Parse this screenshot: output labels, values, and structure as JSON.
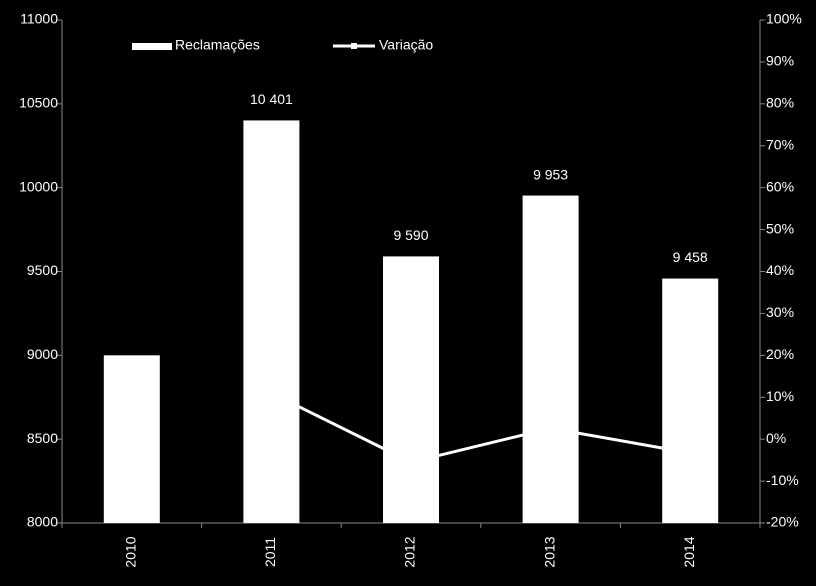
{
  "chart_data": {
    "type": "bar-line",
    "categories": [
      "2010",
      "2011",
      "2012",
      "2013",
      "2014"
    ],
    "series": [
      {
        "name": "Reclamações",
        "type": "bar",
        "color": "#ffffff",
        "values": [
          9000,
          10401,
          9590,
          9953,
          9458
        ],
        "value_labels": [
          null,
          "10 401",
          "9 590",
          "9 953",
          "9 458"
        ]
      },
      {
        "name": "Variação",
        "type": "line",
        "axis": "y2",
        "color": "#ffffff",
        "values": [
          null,
          11,
          -5.5,
          2.6,
          -3.3
        ]
      }
    ],
    "ylim": [
      8000,
      11000
    ],
    "yticks": [
      8000,
      8500,
      9000,
      9500,
      10000,
      10500,
      11000
    ],
    "y2lim": [
      -20,
      100
    ],
    "y2ticks": [
      {
        "value": -20,
        "label": "-20%"
      },
      {
        "value": -10,
        "label": "-10%"
      },
      {
        "value": 0,
        "label": "0%"
      },
      {
        "value": 10,
        "label": "10%"
      },
      {
        "value": 20,
        "label": "20%"
      },
      {
        "value": 30,
        "label": "30%"
      },
      {
        "value": 40,
        "label": "40%"
      },
      {
        "value": 50,
        "label": "50%"
      },
      {
        "value": 60,
        "label": "60%"
      },
      {
        "value": 70,
        "label": "70%"
      },
      {
        "value": 80,
        "label": "80%"
      },
      {
        "value": 90,
        "label": "90%"
      },
      {
        "value": 100,
        "label": "100%"
      }
    ],
    "grid": false,
    "legend": "top"
  }
}
